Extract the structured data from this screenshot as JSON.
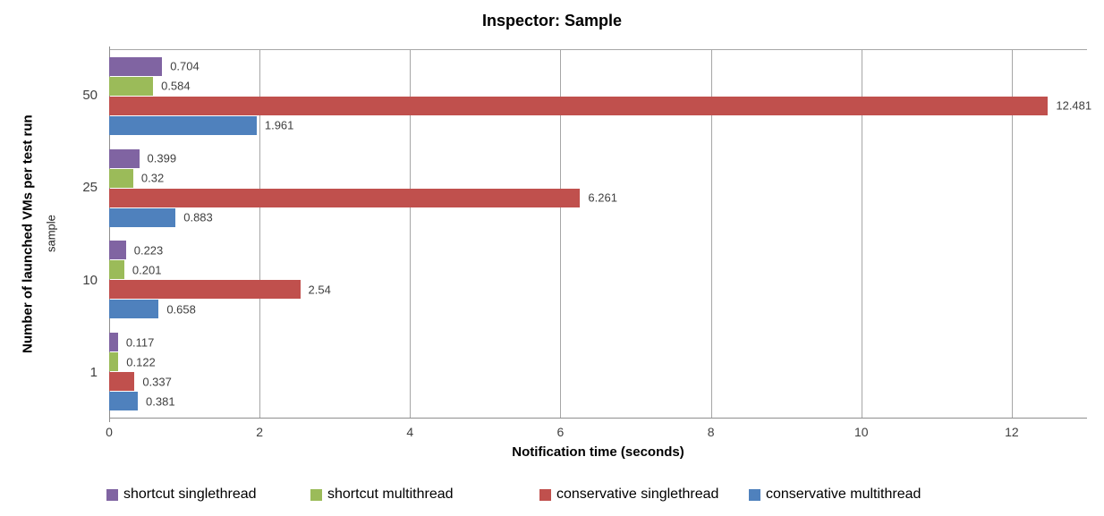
{
  "chart_data": {
    "type": "bar",
    "orientation": "horizontal",
    "title": "Inspector: Sample",
    "xlabel": "Notification time (seconds)",
    "ylabel": "Number of launched VMs per test run",
    "ylabel_secondary": "sample",
    "categories": [
      "50",
      "25",
      "10",
      "1"
    ],
    "series": [
      {
        "name": "shortcut singlethread",
        "color": "#8064A2",
        "values": [
          0.704,
          0.399,
          0.223,
          0.117
        ]
      },
      {
        "name": "shortcut multithread",
        "color": "#9BBB59",
        "values": [
          0.584,
          0.32,
          0.201,
          0.122
        ]
      },
      {
        "name": "conservative singlethread",
        "color": "#C0504D",
        "values": [
          12.481,
          6.261,
          2.54,
          0.337
        ]
      },
      {
        "name": "conservative multithread",
        "color": "#4F81BD",
        "values": [
          1.961,
          0.883,
          0.658,
          0.381
        ]
      }
    ],
    "value_labels": [
      [
        "0.704",
        "0.399",
        "0.223",
        "0.117"
      ],
      [
        "0.584",
        "0.32",
        "0.201",
        "0.122"
      ],
      [
        "12.481",
        "6.261",
        "2.54",
        "0.337"
      ],
      [
        "1.961",
        "0.883",
        "0.658",
        "0.381"
      ]
    ],
    "xlim": [
      0,
      13
    ],
    "xticks": [
      0,
      2,
      4,
      6,
      8,
      10,
      12
    ],
    "grid": "vertical",
    "legend_position": "bottom"
  }
}
